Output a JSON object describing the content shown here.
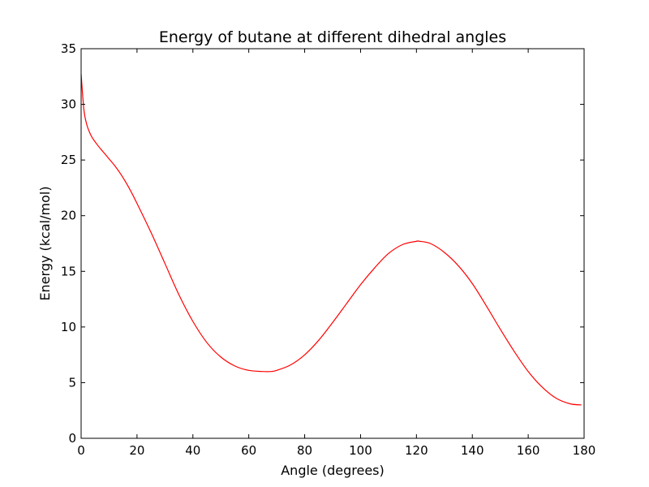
{
  "chart_data": {
    "type": "line",
    "title": "Energy of butane at different dihedral angles",
    "xlabel": "Angle (degrees)",
    "ylabel": "Energy (kcal/mol)",
    "xlim": [
      0,
      180
    ],
    "ylim": [
      0,
      35
    ],
    "xticks": [
      0,
      20,
      40,
      60,
      80,
      100,
      120,
      140,
      160,
      180
    ],
    "yticks": [
      0,
      5,
      10,
      15,
      20,
      25,
      30,
      35
    ],
    "grid": false,
    "legend": "none",
    "series": [
      {
        "color": "#ff0000",
        "x": [
          0,
          1,
          2,
          3,
          4,
          6,
          8,
          10,
          12,
          14,
          16,
          18,
          20,
          25,
          30,
          35,
          40,
          45,
          50,
          55,
          60,
          65,
          68,
          70,
          75,
          80,
          85,
          90,
          95,
          100,
          105,
          110,
          115,
          120,
          121,
          125,
          130,
          135,
          140,
          145,
          150,
          155,
          160,
          165,
          170,
          175,
          179
        ],
        "y": [
          32.7,
          29.5,
          28.2,
          27.5,
          27.0,
          26.3,
          25.7,
          25.1,
          24.5,
          23.8,
          23.0,
          22.1,
          21.1,
          18.5,
          15.7,
          12.9,
          10.5,
          8.6,
          7.3,
          6.5,
          6.1,
          6.0,
          6.0,
          6.1,
          6.6,
          7.5,
          8.8,
          10.4,
          12.1,
          13.8,
          15.3,
          16.6,
          17.4,
          17.7,
          17.7,
          17.5,
          16.7,
          15.5,
          13.9,
          11.9,
          9.8,
          7.8,
          6.0,
          4.6,
          3.6,
          3.1,
          3.0
        ]
      }
    ]
  }
}
